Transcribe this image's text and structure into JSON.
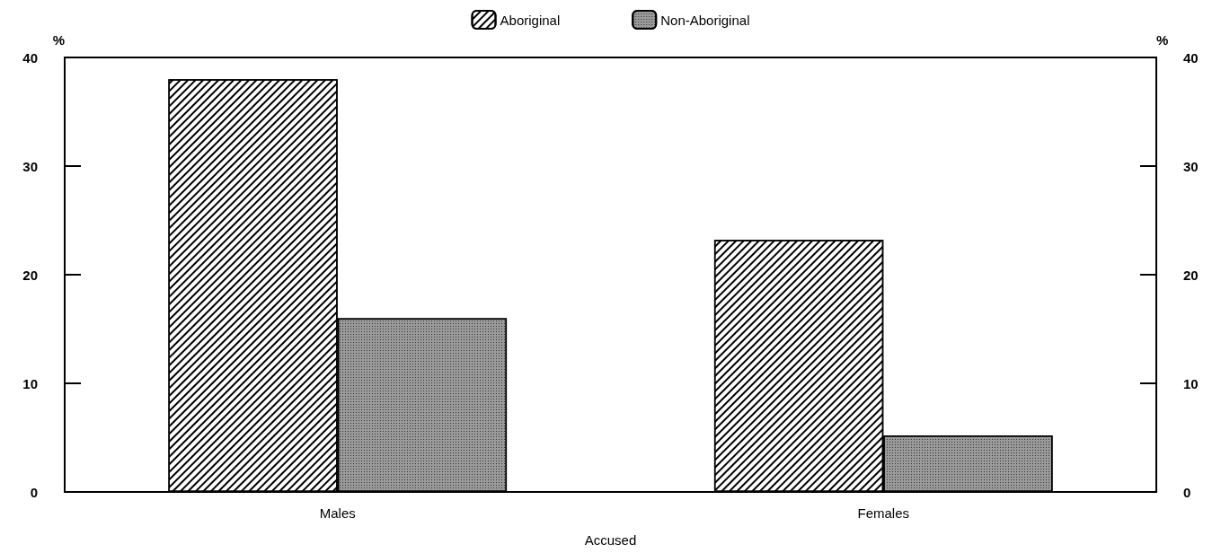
{
  "chart_data": {
    "type": "bar",
    "xlabel": "Accused",
    "ylabel": "%",
    "y2label": "%",
    "categories": [
      "Males",
      "Females"
    ],
    "series": [
      {
        "name": "Aboriginal",
        "color": "#ffffff",
        "values": [
          38,
          23.2
        ]
      },
      {
        "name": "Non-Aboriginal",
        "color": "#9a9a9a",
        "values": [
          16,
          5.2
        ]
      }
    ],
    "ylim": [
      0,
      40
    ],
    "yticks": [
      0,
      10,
      20,
      30,
      40
    ],
    "y2lim": [
      0,
      40
    ],
    "y2ticks": [
      0,
      10,
      20,
      30,
      40
    ],
    "grid": false,
    "legend": "top"
  }
}
